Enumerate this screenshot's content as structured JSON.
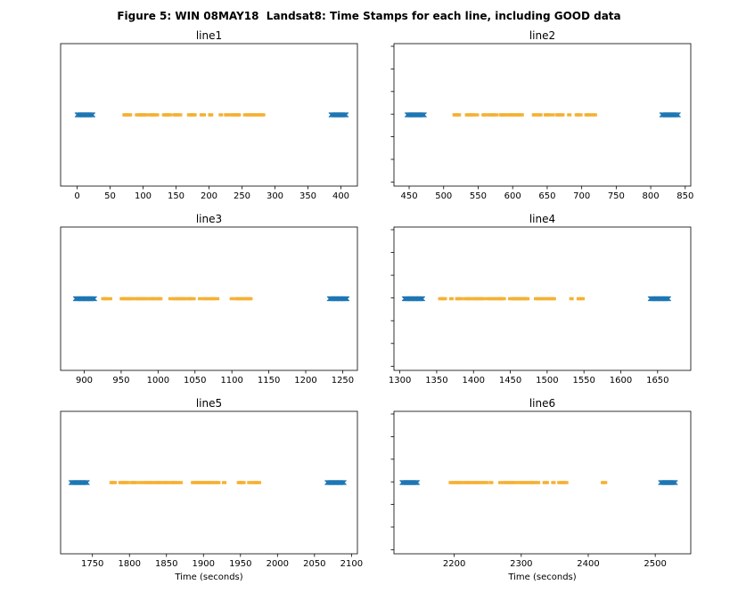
{
  "figure_title": "Figure 5: WIN 08MAY18  Landsat8: Time Stamps for each line, including GOOD data",
  "colors": {
    "blue": "#1f77b4",
    "orange": "#f5b134",
    "axis": "#000000"
  },
  "chart_data": [
    {
      "type": "scatter",
      "title": "line1",
      "xlabel": "",
      "xlim": [
        -25,
        425
      ],
      "ylim": [
        -1,
        1
      ],
      "xticks": [
        0,
        50,
        100,
        150,
        200,
        250,
        300,
        350,
        400
      ],
      "series": [
        {
          "color": "blue",
          "marker": "x",
          "x": [
            0,
            1,
            2,
            3,
            4,
            5,
            6,
            7,
            8,
            9,
            10,
            11,
            12,
            13,
            14,
            15,
            16,
            17,
            18,
            19,
            20,
            21,
            22,
            23,
            24,
            385,
            386,
            387,
            388,
            389,
            390,
            391,
            392,
            393,
            394,
            395,
            396,
            397,
            398,
            399,
            400,
            401,
            402,
            403,
            404,
            405,
            406,
            407,
            408
          ]
        },
        {
          "color": "orange",
          "marker": "_",
          "x": [
            72,
            74,
            76,
            78,
            80,
            91,
            94,
            96,
            98,
            100,
            102,
            105,
            111,
            113,
            116,
            118,
            121,
            132,
            134,
            136,
            138,
            141,
            148,
            150,
            152,
            156,
            170,
            172,
            174,
            176,
            178,
            189,
            192,
            202,
            203,
            218,
            226,
            228,
            233,
            236,
            238,
            241,
            243,
            245,
            255,
            258,
            261,
            264,
            267,
            270,
            273,
            276,
            279,
            282
          ]
        }
      ]
    },
    {
      "type": "scatter",
      "title": "line2",
      "xlabel": "",
      "xlim": [
        428,
        858
      ],
      "ylim": [
        -1,
        1
      ],
      "xticks": [
        450,
        500,
        550,
        600,
        650,
        700,
        750,
        800,
        850
      ],
      "series": [
        {
          "color": "blue",
          "marker": "x",
          "x": [
            447,
            448,
            449,
            450,
            451,
            452,
            453,
            454,
            455,
            456,
            457,
            458,
            459,
            460,
            461,
            462,
            463,
            464,
            465,
            466,
            467,
            468,
            469,
            470,
            471,
            472,
            816,
            817,
            818,
            819,
            820,
            821,
            822,
            823,
            824,
            825,
            826,
            827,
            828,
            829,
            830,
            831,
            832,
            833,
            834,
            835,
            836,
            837,
            838,
            839,
            840
          ]
        },
        {
          "color": "orange",
          "marker": "_",
          "x": [
            516,
            518,
            520,
            522,
            534,
            536,
            538,
            541,
            543,
            548,
            558,
            560,
            566,
            568,
            571,
            573,
            576,
            583,
            585,
            587,
            590,
            595,
            597,
            599,
            601,
            604,
            606,
            608,
            611,
            613,
            631,
            633,
            638,
            640,
            648,
            650,
            652,
            658,
            665,
            667,
            670,
            672,
            682,
            693,
            695,
            698,
            707,
            709,
            711,
            716,
            719
          ]
        }
      ]
    },
    {
      "type": "scatter",
      "title": "line3",
      "xlabel": "",
      "xlim": [
        868,
        1270
      ],
      "ylim": [
        -1,
        1
      ],
      "xticks": [
        900,
        950,
        1000,
        1050,
        1100,
        1150,
        1200,
        1250
      ],
      "series": [
        {
          "color": "blue",
          "marker": "x",
          "x": [
            888,
            889,
            890,
            891,
            892,
            893,
            894,
            895,
            896,
            897,
            898,
            899,
            900,
            901,
            902,
            903,
            904,
            905,
            906,
            907,
            908,
            909,
            910,
            911,
            912,
            913,
            914,
            1232,
            1233,
            1234,
            1235,
            1236,
            1237,
            1238,
            1239,
            1240,
            1241,
            1242,
            1243,
            1244,
            1245,
            1246,
            1247,
            1248,
            1249,
            1250,
            1251,
            1252,
            1253,
            1254,
            1255,
            1256
          ]
        },
        {
          "color": "orange",
          "marker": "_",
          "x": [
            926,
            928,
            931,
            935,
            951,
            953,
            956,
            958,
            960,
            963,
            965,
            970,
            972,
            974,
            977,
            979,
            981,
            984,
            987,
            991,
            993,
            995,
            999,
            1001,
            1003,
            1017,
            1022,
            1024,
            1027,
            1029,
            1031,
            1034,
            1036,
            1040,
            1043,
            1045,
            1048,
            1057,
            1063,
            1066,
            1070,
            1073,
            1075,
            1080,
            1100,
            1106,
            1108,
            1110,
            1113,
            1115,
            1118,
            1121,
            1123,
            1125
          ]
        }
      ]
    },
    {
      "type": "scatter",
      "title": "line4",
      "xlabel": "",
      "xlim": [
        1292,
        1695
      ],
      "ylim": [
        -1,
        1
      ],
      "xticks": [
        1300,
        1350,
        1400,
        1450,
        1500,
        1550,
        1600,
        1650
      ],
      "series": [
        {
          "color": "blue",
          "marker": "x",
          "x": [
            1306,
            1307,
            1308,
            1309,
            1310,
            1311,
            1312,
            1313,
            1314,
            1315,
            1316,
            1317,
            1318,
            1319,
            1320,
            1321,
            1322,
            1323,
            1324,
            1325,
            1326,
            1327,
            1328,
            1329,
            1330,
            1331,
            1640,
            1641,
            1642,
            1643,
            1644,
            1645,
            1646,
            1647,
            1648,
            1649,
            1650,
            1651,
            1652,
            1653,
            1654,
            1655,
            1656,
            1657,
            1658,
            1659,
            1660,
            1661,
            1662,
            1663,
            1664,
            1665
          ]
        },
        {
          "color": "orange",
          "marker": "_",
          "x": [
            1355,
            1358,
            1361,
            1370,
            1378,
            1380,
            1383,
            1389,
            1392,
            1394,
            1397,
            1401,
            1403,
            1406,
            1408,
            1411,
            1413,
            1419,
            1422,
            1425,
            1428,
            1431,
            1434,
            1436,
            1438,
            1441,
            1450,
            1453,
            1455,
            1457,
            1459,
            1461,
            1463,
            1465,
            1467,
            1469,
            1471,
            1473,
            1485,
            1488,
            1491,
            1494,
            1497,
            1501,
            1503,
            1507,
            1509,
            1533,
            1543,
            1545,
            1548
          ]
        }
      ]
    },
    {
      "type": "scatter",
      "title": "line5",
      "xlabel": "Time (seconds)",
      "xlim": [
        1707,
        2108
      ],
      "ylim": [
        -1,
        1
      ],
      "xticks": [
        1750,
        1800,
        1850,
        1900,
        1950,
        2000,
        2050,
        2100
      ],
      "series": [
        {
          "color": "blue",
          "marker": "x",
          "x": [
            1721,
            1722,
            1723,
            1724,
            1725,
            1726,
            1727,
            1728,
            1729,
            1730,
            1731,
            1732,
            1733,
            1734,
            1735,
            1736,
            1737,
            1738,
            1739,
            1740,
            1741,
            1742,
            1743,
            2067,
            2068,
            2069,
            2070,
            2071,
            2072,
            2073,
            2074,
            2075,
            2076,
            2077,
            2078,
            2079,
            2080,
            2081,
            2082,
            2083,
            2084,
            2085,
            2086,
            2087,
            2088,
            2089,
            2090
          ]
        },
        {
          "color": "orange",
          "marker": "_",
          "x": [
            1776,
            1778,
            1780,
            1788,
            1790,
            1792,
            1795,
            1797,
            1803,
            1806,
            1808,
            1814,
            1819,
            1822,
            1826,
            1828,
            1831,
            1835,
            1838,
            1840,
            1842,
            1846,
            1849,
            1851,
            1855,
            1858,
            1860,
            1862,
            1865,
            1869,
            1886,
            1888,
            1891,
            1893,
            1895,
            1898,
            1900,
            1902,
            1905,
            1907,
            1909,
            1912,
            1915,
            1918,
            1920,
            1928,
            1948,
            1950,
            1952,
            1954,
            1962,
            1966,
            1970,
            1972,
            1975
          ]
        }
      ]
    },
    {
      "type": "scatter",
      "title": "line6",
      "xlabel": "Time (seconds)",
      "xlim": [
        2110,
        2553
      ],
      "ylim": [
        -1,
        1
      ],
      "xticks": [
        2200,
        2300,
        2400,
        2500
      ],
      "series": [
        {
          "color": "blue",
          "marker": "x",
          "x": [
            2122,
            2123,
            2124,
            2125,
            2126,
            2127,
            2128,
            2129,
            2130,
            2131,
            2132,
            2133,
            2134,
            2135,
            2136,
            2137,
            2138,
            2139,
            2140,
            2141,
            2142,
            2143,
            2144,
            2145,
            2508,
            2509,
            2510,
            2511,
            2512,
            2513,
            2514,
            2515,
            2516,
            2517,
            2518,
            2519,
            2520,
            2521,
            2522,
            2523,
            2524,
            2525,
            2526,
            2527,
            2528,
            2529,
            2530
          ]
        },
        {
          "color": "orange",
          "marker": "_",
          "x": [
            2195,
            2198,
            2201,
            2204,
            2207,
            2210,
            2215,
            2218,
            2221,
            2224,
            2227,
            2230,
            2233,
            2236,
            2240,
            2244,
            2248,
            2255,
            2269,
            2274,
            2278,
            2281,
            2285,
            2288,
            2292,
            2298,
            2301,
            2305,
            2308,
            2312,
            2315,
            2318,
            2321,
            2325,
            2335,
            2338,
            2348,
            2357,
            2360,
            2363,
            2367,
            2422,
            2425
          ]
        }
      ]
    }
  ]
}
